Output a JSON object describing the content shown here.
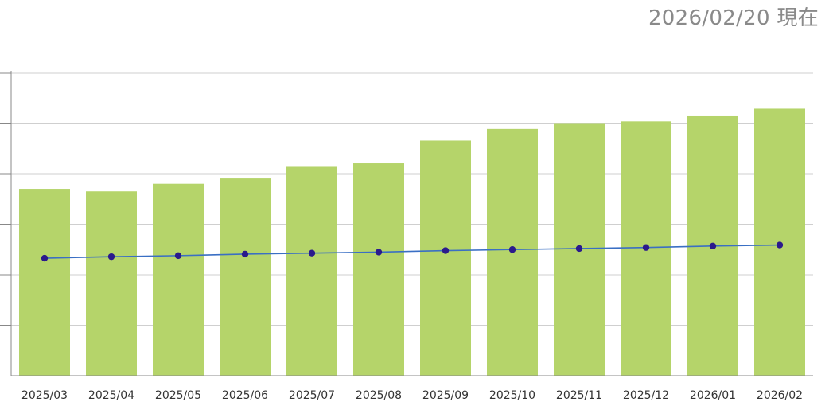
{
  "header": {
    "as_of": "2026/02/20 現在"
  },
  "colors": {
    "bar": "#b5d46a",
    "line": "#3a6fc4",
    "marker": "#2b1a8c",
    "grid": "#cfcfcf",
    "axis": "#888888"
  },
  "chart_data": {
    "type": "bar",
    "categories": [
      "2025/03",
      "2025/04",
      "2025/05",
      "2025/06",
      "2025/07",
      "2025/08",
      "2025/09",
      "2025/10",
      "2025/11",
      "2025/12",
      "2026/01",
      "2026/02"
    ],
    "series": [
      {
        "type": "bar",
        "values": [
          3.7,
          3.65,
          3.8,
          3.92,
          4.15,
          4.22,
          4.67,
          4.9,
          5.0,
          5.05,
          5.15,
          5.3
        ]
      },
      {
        "type": "line",
        "values": [
          2.33,
          2.36,
          2.38,
          2.41,
          2.43,
          2.45,
          2.48,
          2.5,
          2.52,
          2.54,
          2.57,
          2.59
        ]
      }
    ],
    "ylim": [
      0,
      6
    ],
    "grid": true,
    "legend": "none",
    "title": "",
    "xlabel": "",
    "ylabel": ""
  }
}
